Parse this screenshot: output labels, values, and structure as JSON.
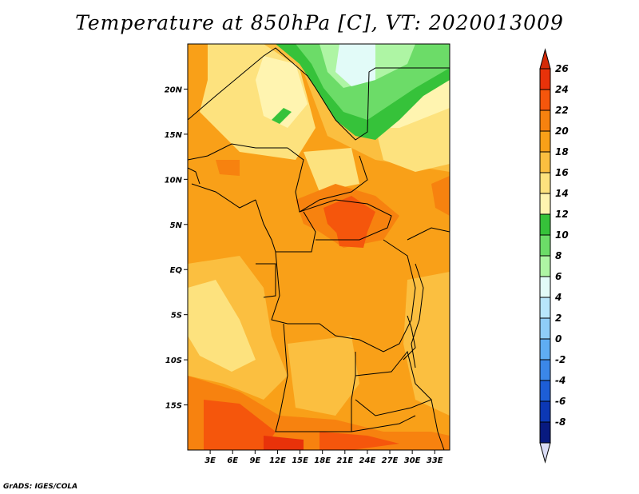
{
  "title": "Temperature at 850hPa [C], VT: 2020013009",
  "credit": "GrADS: IGES/COLA",
  "map": {
    "lon_range": [
      0,
      35
    ],
    "lat_range": [
      -20,
      25
    ],
    "lat_ticks": [
      {
        "value": 20,
        "label": "20N"
      },
      {
        "value": 15,
        "label": "15N"
      },
      {
        "value": 10,
        "label": "10N"
      },
      {
        "value": 5,
        "label": "5N"
      },
      {
        "value": 0,
        "label": "EQ"
      },
      {
        "value": -5,
        "label": "5S"
      },
      {
        "value": -10,
        "label": "10S"
      },
      {
        "value": -15,
        "label": "15S"
      }
    ],
    "lon_ticks": [
      {
        "value": 3,
        "label": "3E"
      },
      {
        "value": 6,
        "label": "6E"
      },
      {
        "value": 9,
        "label": "9E"
      },
      {
        "value": 12,
        "label": "12E"
      },
      {
        "value": 15,
        "label": "15E"
      },
      {
        "value": 18,
        "label": "18E"
      },
      {
        "value": 21,
        "label": "21E"
      },
      {
        "value": 24,
        "label": "24E"
      },
      {
        "value": 27,
        "label": "27E"
      },
      {
        "value": 30,
        "label": "30E"
      },
      {
        "value": 33,
        "label": "33E"
      }
    ]
  },
  "colorbar": {
    "levels": [
      {
        "label": "26",
        "color": "#e8320a"
      },
      {
        "label": "24",
        "color": "#f5560c"
      },
      {
        "label": "22",
        "color": "#f7820f"
      },
      {
        "label": "20",
        "color": "#f9a018"
      },
      {
        "label": "18",
        "color": "#fbbf40"
      },
      {
        "label": "16",
        "color": "#fde27e"
      },
      {
        "label": "14",
        "color": "#fff4b0"
      },
      {
        "label": "12",
        "color": "#36c23a"
      },
      {
        "label": "10",
        "color": "#6cdc68"
      },
      {
        "label": "8",
        "color": "#aef5a4"
      },
      {
        "label": "6",
        "color": "#e2fbf8"
      },
      {
        "label": "4",
        "color": "#b8e6fb"
      },
      {
        "label": "2",
        "color": "#8fcdf8"
      },
      {
        "label": "0",
        "color": "#5fadf2"
      },
      {
        "label": "-2",
        "color": "#3b87e8"
      },
      {
        "label": "-4",
        "color": "#1d5ed6"
      },
      {
        "label": "-6",
        "color": "#0c38b5"
      },
      {
        "label": "-8",
        "color": "#081a80"
      }
    ],
    "top_cap_color": "#d42a08",
    "bottom_cap_color": "#dadcf5"
  }
}
